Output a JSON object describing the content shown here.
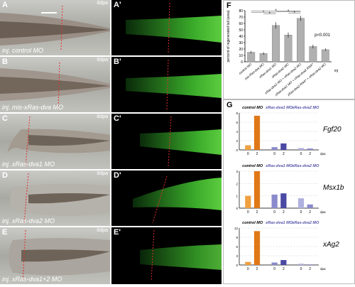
{
  "figure": {
    "rows": [
      {
        "left": "A",
        "right": "A'",
        "caption": "inj. control MO",
        "dpa": "8dpa"
      },
      {
        "left": "B",
        "right": "B'",
        "caption": "inj. mis-xRas-dva MO",
        "dpa": "8dpa"
      },
      {
        "left": "C",
        "right": "C'",
        "caption": "inj. xRas-dva1 MO",
        "dpa": "8dpa"
      },
      {
        "left": "D",
        "right": "D'",
        "caption": "inj. xRas-dva2 MO",
        "dpa": "8dpa"
      },
      {
        "left": "E",
        "right": "E'",
        "caption": "inj. xRas-dva1+2 MO",
        "dpa": "8dpa"
      }
    ],
    "panel_f_label": "F",
    "panel_g_label": "G"
  },
  "chart_data": [
    {
      "type": "bar",
      "panel": "F",
      "ylabel": "percent of regenerated tail (area)",
      "ylim": [
        0,
        80
      ],
      "yticks": [
        0,
        10,
        20,
        30,
        40,
        50,
        60,
        70,
        80
      ],
      "categories": [
        "control MO",
        "mis-Ras-dva MO",
        "xRas-dva1 MO",
        "xRas-dva2 MO",
        "xRas-dva1 MO + xRas-dva2 MO",
        "xRas-dva1 MO + xRas-dva2 RNA*",
        "xRas-dva2 RNA* + xRas-dva2 MO"
      ],
      "values": [
        15,
        13,
        57,
        42,
        68,
        24,
        19
      ],
      "errors": [
        2,
        2,
        5,
        4,
        4,
        3,
        2
      ],
      "color": "#b0b0b0",
      "significance": "p<0.001",
      "extra_label": "inj"
    },
    {
      "type": "bar",
      "panel": "G",
      "gene": "Fgf20",
      "ylim": [
        0,
        8
      ],
      "yticks": [
        0,
        2,
        4,
        6,
        8
      ],
      "groups": [
        "control MO",
        "xRas-dva1 MO",
        "xRas-dva2 MO"
      ],
      "x": [
        "0",
        "2",
        "0",
        "2",
        "0",
        "2"
      ],
      "xlabel": "dpa",
      "values": [
        1.0,
        7.4,
        0.6,
        1.4,
        0.4,
        0.3
      ],
      "colors": [
        "#f0a040",
        "#e07818",
        "#8a8acc",
        "#4a4aa4",
        "#b0b0e0",
        "#8a8acc"
      ]
    },
    {
      "type": "bar",
      "panel": "G",
      "gene": "Msx1b",
      "ylim": [
        0,
        3
      ],
      "yticks": [
        0,
        1,
        2,
        3
      ],
      "groups": [
        "control MO",
        "xRas-dva1 MO",
        "xRas-dva2 MO"
      ],
      "x": [
        "0",
        "2",
        "0",
        "2",
        "0",
        "2"
      ],
      "xlabel": "dpa",
      "values": [
        1.0,
        3.0,
        1.1,
        1.2,
        0.8,
        0.3
      ],
      "colors": [
        "#f0a040",
        "#e07818",
        "#8a8acc",
        "#4a4aa4",
        "#b0b0e0",
        "#8a8acc"
      ]
    },
    {
      "type": "bar",
      "panel": "G",
      "gene": "xAg2",
      "ylim": [
        0,
        12
      ],
      "yticks": [
        0,
        3,
        6,
        9,
        12
      ],
      "groups": [
        "control MO",
        "xRas-dva1 MO",
        "xRas-dva2 MO"
      ],
      "x": [
        "0",
        "2",
        "0",
        "2",
        "0",
        "2"
      ],
      "xlabel": "dpa",
      "values": [
        1.0,
        11.0,
        0.8,
        1.6,
        0.4,
        0.2
      ],
      "colors": [
        "#f0a040",
        "#e07818",
        "#8a8acc",
        "#4a4aa4",
        "#b0b0e0",
        "#8a8acc"
      ]
    }
  ]
}
